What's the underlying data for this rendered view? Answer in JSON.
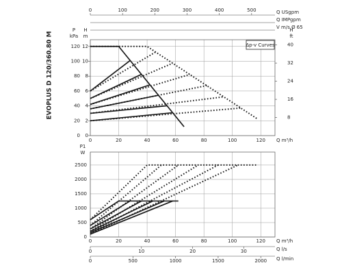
{
  "title": "EVOPLUS D 120/360.80 M",
  "chart_data": [
    {
      "type": "line",
      "grid": true,
      "xlabel": "Q m³/h",
      "xlim": [
        0,
        130
      ],
      "xticks": [
        0,
        20,
        40,
        60,
        80,
        100,
        120
      ],
      "ylabel": "H",
      "yunit": "m",
      "ylim": [
        0,
        12.9
      ],
      "yticks": [
        0,
        2,
        4,
        6,
        8,
        10,
        12
      ],
      "legend_text": "Δp-v Curves",
      "axes": [
        {
          "side": "left",
          "label": "P",
          "unit": "kPa",
          "lim": [
            0,
            129
          ],
          "ticks": [
            0,
            20,
            40,
            60,
            80,
            100,
            120
          ]
        },
        {
          "side": "right",
          "label": "H",
          "unit": "ft",
          "lim": [
            0,
            42.3
          ],
          "ticks": [
            8,
            16,
            24,
            32,
            40
          ]
        },
        {
          "side": "top",
          "label": "Q USgpm",
          "lim": [
            0,
            572.4
          ],
          "ticks": [
            0,
            100,
            200,
            300,
            400,
            500
          ]
        },
        {
          "side": "top",
          "label": "Q IMPgpm"
        },
        {
          "side": "top",
          "label": "V m/s Ø 65"
        }
      ],
      "series": [
        {
          "style": "solid",
          "color": "#1a1a1a",
          "x": [
            0,
            20,
            66
          ],
          "values": [
            12,
            12,
            1.2
          ]
        },
        {
          "style": "solid",
          "color": "#1a1a1a",
          "x": [
            0,
            28
          ],
          "values": [
            6,
            10.1
          ]
        },
        {
          "style": "solid",
          "color": "#1a1a1a",
          "x": [
            0,
            36
          ],
          "values": [
            5,
            8.24
          ]
        },
        {
          "style": "solid",
          "color": "#1a1a1a",
          "x": [
            0,
            42
          ],
          "values": [
            4.2,
            6.83
          ]
        },
        {
          "style": "solid",
          "color": "#1a1a1a",
          "x": [
            0,
            48
          ],
          "values": [
            3.6,
            5.43
          ]
        },
        {
          "style": "solid",
          "color": "#1a1a1a",
          "x": [
            0,
            54
          ],
          "values": [
            3,
            4.02
          ]
        },
        {
          "style": "solid",
          "color": "#1a1a1a",
          "x": [
            0,
            58
          ],
          "values": [
            2,
            3.08
          ]
        },
        {
          "style": "dotted",
          "color": "#1a1a1a",
          "x": [
            0,
            40,
            118
          ],
          "values": [
            12,
            12,
            2.2
          ]
        },
        {
          "style": "dotted",
          "color": "#1a1a1a",
          "x": [
            0,
            46
          ],
          "values": [
            6,
            11.25
          ]
        },
        {
          "style": "dotted",
          "color": "#1a1a1a",
          "x": [
            0,
            58
          ],
          "values": [
            5,
            9.74
          ]
        },
        {
          "style": "dotted",
          "color": "#1a1a1a",
          "x": [
            0,
            70
          ],
          "values": [
            4.2,
            8.23
          ]
        },
        {
          "style": "dotted",
          "color": "#1a1a1a",
          "x": [
            0,
            82
          ],
          "values": [
            3.6,
            6.73
          ]
        },
        {
          "style": "dotted",
          "color": "#1a1a1a",
          "x": [
            0,
            94
          ],
          "values": [
            3,
            5.22
          ]
        },
        {
          "style": "dotted",
          "color": "#1a1a1a",
          "x": [
            0,
            106
          ],
          "values": [
            2,
            3.71
          ]
        }
      ]
    },
    {
      "type": "line",
      "grid": true,
      "xlabel": "Q m³/h",
      "xlim": [
        0,
        130
      ],
      "xticks": [
        0,
        20,
        40,
        60,
        80,
        100,
        120
      ],
      "ylabel": "P1",
      "yunit": "W",
      "ylim": [
        0,
        2950
      ],
      "yticks": [
        0,
        500,
        1000,
        1500,
        2000,
        2500
      ],
      "axes": [
        {
          "side": "bottom",
          "label": "Q l/s",
          "lim": [
            0,
            36.1
          ],
          "ticks": [
            0,
            10,
            20,
            30
          ]
        },
        {
          "side": "bottom",
          "label": "Q l/min",
          "lim": [
            0,
            2166.7
          ],
          "ticks": [
            0,
            500,
            1000,
            1500,
            2000
          ]
        }
      ],
      "series": [
        {
          "style": "solid",
          "color": "#1a1a1a",
          "x": [
            0,
            20,
            62
          ],
          "values": [
            600,
            1250,
            1250
          ]
        },
        {
          "style": "solid",
          "color": "#1a1a1a",
          "x": [
            0,
            28
          ],
          "values": [
            400,
            1250
          ]
        },
        {
          "style": "solid",
          "color": "#1a1a1a",
          "x": [
            0,
            36
          ],
          "values": [
            280,
            1250
          ]
        },
        {
          "style": "solid",
          "color": "#1a1a1a",
          "x": [
            0,
            44
          ],
          "values": [
            200,
            1250
          ]
        },
        {
          "style": "solid",
          "color": "#1a1a1a",
          "x": [
            0,
            52
          ],
          "values": [
            150,
            1250
          ]
        },
        {
          "style": "solid",
          "color": "#1a1a1a",
          "x": [
            0,
            58
          ],
          "values": [
            100,
            1250
          ]
        },
        {
          "style": "dotted",
          "color": "#1a1a1a",
          "x": [
            0,
            40,
            118
          ],
          "values": [
            600,
            2500,
            2500
          ]
        },
        {
          "style": "dotted",
          "color": "#1a1a1a",
          "x": [
            0,
            50
          ],
          "values": [
            400,
            2500
          ]
        },
        {
          "style": "dotted",
          "color": "#1a1a1a",
          "x": [
            0,
            62
          ],
          "values": [
            280,
            2500
          ]
        },
        {
          "style": "dotted",
          "color": "#1a1a1a",
          "x": [
            0,
            76
          ],
          "values": [
            200,
            2500
          ]
        },
        {
          "style": "dotted",
          "color": "#1a1a1a",
          "x": [
            0,
            90
          ],
          "values": [
            150,
            2500
          ]
        },
        {
          "style": "dotted",
          "color": "#1a1a1a",
          "x": [
            0,
            104
          ],
          "values": [
            100,
            2500
          ]
        }
      ]
    }
  ]
}
